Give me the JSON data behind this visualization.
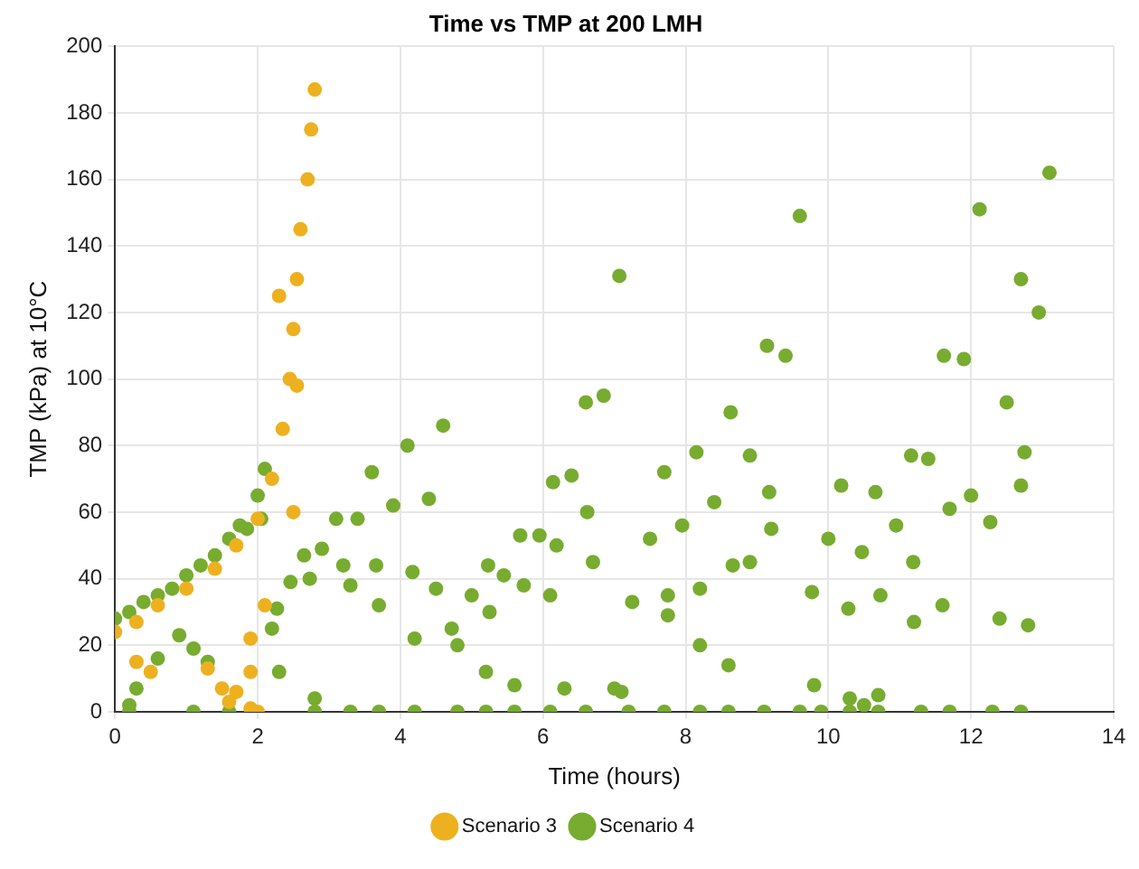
{
  "chart_data": {
    "type": "scatter",
    "title": "Time vs TMP at 200 LMH",
    "xlabel": "Time (hours)",
    "ylabel": "TMP (kPa) at 10°C",
    "xlim": [
      0,
      14
    ],
    "xticks": [
      0,
      2,
      4,
      6,
      8,
      10,
      12,
      14
    ],
    "ylim": [
      0,
      200
    ],
    "yticks": [
      0,
      20,
      40,
      60,
      80,
      100,
      120,
      140,
      160,
      180,
      200
    ],
    "grid": true,
    "legend": "bottom",
    "marker": "circle",
    "series": [
      {
        "name": "Scenario 3",
        "color": "#edb120",
        "x": [
          0,
          0.3,
          0.6,
          1.0,
          1.4,
          1.7,
          2.0,
          2.2,
          2.35,
          2.45,
          2.5,
          2.55,
          2.6,
          2.7,
          2.75,
          2.8,
          0.3,
          0.5,
          1.3,
          1.5,
          1.7,
          1.6,
          1.9,
          1.9,
          2.0,
          2.5,
          2.55,
          2.1,
          1.9,
          2.3
        ],
        "values": [
          24,
          27,
          32,
          37,
          43,
          50,
          58,
          70,
          85,
          100,
          115,
          130,
          145,
          160,
          175,
          187,
          15,
          12,
          13,
          7,
          6,
          3,
          12,
          1,
          0,
          60,
          98,
          32,
          22,
          125
        ]
      },
      {
        "name": "Scenario 4",
        "color": "#77ac30",
        "x": [
          0,
          0.2,
          0.4,
          0.6,
          0.8,
          1.0,
          1.2,
          1.4,
          1.6,
          1.75,
          1.85,
          2.0,
          2.1,
          2.27,
          2.46,
          2.65,
          2.73,
          2.9,
          3.1,
          3.2,
          3.4,
          3.6,
          3.66,
          3.9,
          4.1,
          4.17,
          4.4,
          4.6,
          4.72,
          5.0,
          5.23,
          5.25,
          5.45,
          5.68,
          5.73,
          5.95,
          6.14,
          6.19,
          6.4,
          6.6,
          6.62,
          6.85,
          7.07,
          7.25,
          7.5,
          7.7,
          7.75,
          7.95,
          8.15,
          8.2,
          8.4,
          8.63,
          8.66,
          8.9,
          9.14,
          9.17,
          9.4,
          9.6,
          9.77,
          10.0,
          10.18,
          10.28,
          10.47,
          10.66,
          10.73,
          10.95,
          11.16,
          11.19,
          11.4,
          11.62,
          11.7,
          11.9,
          12.12,
          12.27,
          12.5,
          12.7,
          12.75,
          12.95,
          13.1,
          0.2,
          1.1,
          1.6,
          2.8,
          3.3,
          3.7,
          4.2,
          4.8,
          5.2,
          5.6,
          6.1,
          6.6,
          7.2,
          7.7,
          8.2,
          8.6,
          9.1,
          9.6,
          9.9,
          10.3,
          10.7,
          11.3,
          11.7,
          12.3,
          12.7,
          0.2,
          0.3,
          0.6,
          0.9,
          1.1,
          1.3,
          2.05,
          2.2,
          2.3,
          2.8,
          3.3,
          3.7,
          4.2,
          4.5,
          4.8,
          5.2,
          5.6,
          6.1,
          6.3,
          6.7,
          7.0,
          7.1,
          7.75,
          8.2,
          8.6,
          8.9,
          9.2,
          9.8,
          10.3,
          10.5,
          10.7,
          11.2,
          11.6,
          12.0,
          12.4,
          12.7,
          12.8
        ],
        "values": [
          28,
          30,
          33,
          35,
          37,
          41,
          44,
          47,
          52,
          56,
          55,
          65,
          73,
          31,
          39,
          47,
          40,
          49,
          58,
          44,
          58,
          72,
          44,
          62,
          80,
          42,
          64,
          86,
          25,
          35,
          44,
          30,
          41,
          53,
          38,
          53,
          69,
          50,
          71,
          93,
          60,
          95,
          131,
          33,
          52,
          72,
          35,
          56,
          78,
          37,
          63,
          90,
          44,
          77,
          110,
          66,
          107,
          149,
          36,
          52,
          68,
          31,
          48,
          66,
          35,
          56,
          77,
          45,
          76,
          107,
          61,
          106,
          151,
          57,
          93,
          130,
          78,
          120,
          162,
          0,
          0,
          0,
          0,
          0,
          0,
          0,
          0,
          0,
          0,
          0,
          0,
          0,
          0,
          0,
          0,
          0,
          0,
          0,
          0,
          0,
          0,
          0,
          0,
          0,
          2,
          7,
          16,
          23,
          19,
          15,
          58,
          25,
          12,
          4,
          38,
          32,
          22,
          37,
          20,
          12,
          8,
          35,
          7,
          45,
          7,
          6,
          29,
          20,
          14,
          45,
          55,
          8,
          4,
          2,
          5,
          27,
          32,
          65,
          28,
          68,
          26
        ]
      }
    ]
  }
}
